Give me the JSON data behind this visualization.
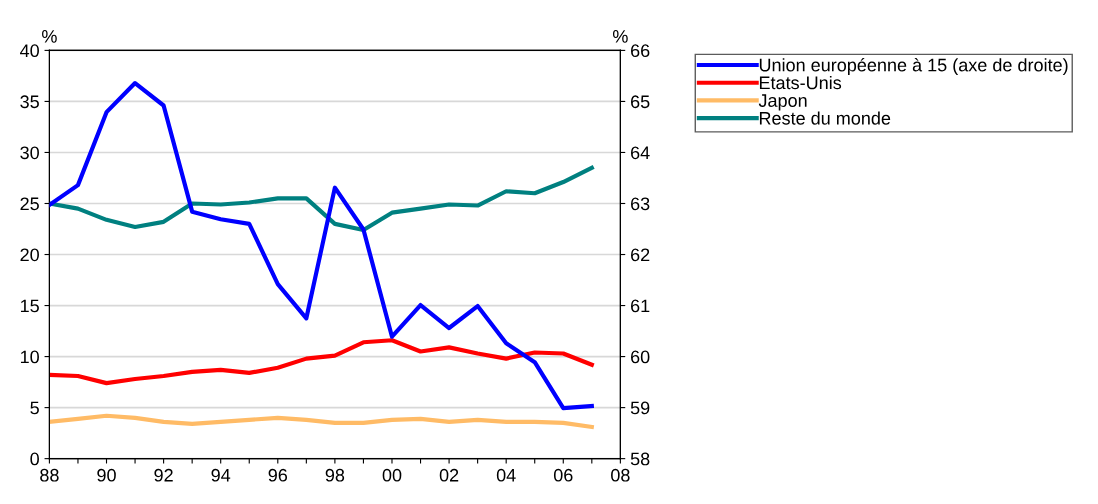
{
  "chart_data": {
    "type": "line",
    "ylabel": "%",
    "y2label": "%",
    "x": [
      1988,
      1989,
      1990,
      1991,
      1992,
      1993,
      1994,
      1995,
      1996,
      1997,
      1998,
      1999,
      2000,
      2001,
      2002,
      2003,
      2004,
      2005,
      2006,
      2007
    ],
    "series": [
      {
        "name": "Union européenne à 15 (axe de droite)",
        "color": "#0000ff",
        "axis": "y2",
        "values": [
          62.97,
          63.36,
          64.79,
          65.36,
          64.92,
          62.84,
          62.69,
          62.6,
          61.42,
          60.75,
          63.31,
          62.49,
          60.39,
          61.01,
          60.56,
          60.99,
          60.26,
          59.89,
          58.99,
          59.03
        ]
      },
      {
        "name": "Etats-Unis",
        "color": "#ff0000",
        "values": [
          8.2,
          8.1,
          7.4,
          7.8,
          8.1,
          8.5,
          8.7,
          8.4,
          8.9,
          9.8,
          10.1,
          11.4,
          11.6,
          10.5,
          10.9,
          10.3,
          9.8,
          10.4,
          10.3,
          9.2
        ]
      },
      {
        "name": "Japon",
        "color": "#ffbb66",
        "values": [
          3.6,
          3.9,
          4.2,
          4.0,
          3.6,
          3.4,
          3.6,
          3.8,
          4.0,
          3.8,
          3.5,
          3.5,
          3.8,
          3.9,
          3.6,
          3.8,
          3.6,
          3.6,
          3.5,
          3.1
        ]
      },
      {
        "name": "Reste du monde",
        "color": "#008080",
        "values": [
          25.0,
          24.5,
          23.4,
          22.7,
          23.2,
          25.0,
          24.9,
          25.1,
          25.5,
          25.5,
          23.0,
          22.4,
          24.1,
          24.5,
          24.9,
          24.8,
          26.2,
          26.0,
          27.1,
          28.5
        ]
      }
    ],
    "xlim": [
      1988,
      2008
    ],
    "xticks": [
      {
        "value": 1988,
        "label": "88"
      },
      {
        "value": 1989,
        "label": null
      },
      {
        "value": 1990,
        "label": "90"
      },
      {
        "value": 1991,
        "label": null
      },
      {
        "value": 1992,
        "label": "92"
      },
      {
        "value": 1993,
        "label": null
      },
      {
        "value": 1994,
        "label": "94"
      },
      {
        "value": 1995,
        "label": null
      },
      {
        "value": 1996,
        "label": "96"
      },
      {
        "value": 1997,
        "label": null
      },
      {
        "value": 1998,
        "label": "98"
      },
      {
        "value": 1999,
        "label": null
      },
      {
        "value": 2000,
        "label": "00"
      },
      {
        "value": 2001,
        "label": null
      },
      {
        "value": 2002,
        "label": "02"
      },
      {
        "value": 2003,
        "label": null
      },
      {
        "value": 2004,
        "label": "04"
      },
      {
        "value": 2005,
        "label": null
      },
      {
        "value": 2006,
        "label": "06"
      },
      {
        "value": 2007,
        "label": null
      },
      {
        "value": 2008,
        "label": "08"
      }
    ],
    "ylim": [
      0,
      40
    ],
    "yticks": [
      0,
      5,
      10,
      15,
      20,
      25,
      30,
      35,
      40
    ],
    "y2lim": [
      58,
      66
    ],
    "y2ticks": [
      58,
      59,
      60,
      61,
      62,
      63,
      64,
      65,
      66
    ],
    "grid": "y",
    "legend": "top right",
    "line_style": "solid",
    "marker": "none"
  }
}
